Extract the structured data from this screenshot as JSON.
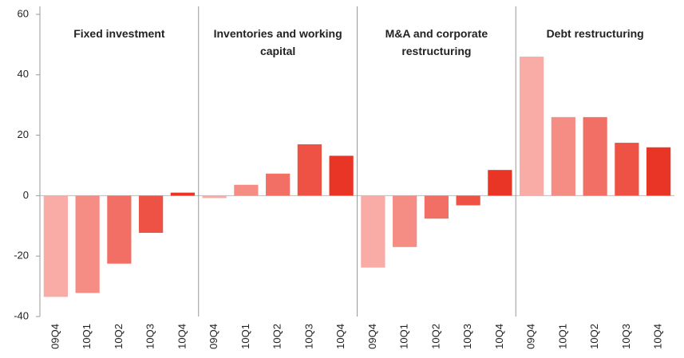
{
  "chart_data": {
    "type": "bar",
    "ylim": [
      -40,
      60
    ],
    "yticks": [
      -40,
      -20,
      0,
      20,
      40,
      60
    ],
    "colors": [
      "#f9aba6",
      "#f68d85",
      "#f26f65",
      "#ee5244",
      "#e93525"
    ],
    "groups": [
      {
        "name": "Fixed investment",
        "categories": [
          "09Q4",
          "10Q1",
          "10Q2",
          "10Q3",
          "10Q4"
        ],
        "values": [
          -33.5,
          -32.2,
          -22.5,
          -12.3,
          1
        ]
      },
      {
        "name": "Inventories and working capital",
        "categories": [
          "09Q4",
          "10Q1",
          "10Q2",
          "10Q3",
          "10Q4"
        ],
        "values": [
          -0.8,
          3.6,
          7.3,
          17,
          13.2
        ]
      },
      {
        "name": "M&A and corporate restructuring",
        "categories": [
          "09Q4",
          "10Q1",
          "10Q2",
          "10Q3",
          "10Q4"
        ],
        "values": [
          -23.8,
          -17,
          -7.6,
          -3.2,
          8.5
        ]
      },
      {
        "name": "Debt restructuring",
        "categories": [
          "09Q4",
          "10Q1",
          "10Q2",
          "10Q3",
          "10Q4"
        ],
        "values": [
          46,
          26,
          26,
          17.5,
          16
        ]
      }
    ]
  }
}
